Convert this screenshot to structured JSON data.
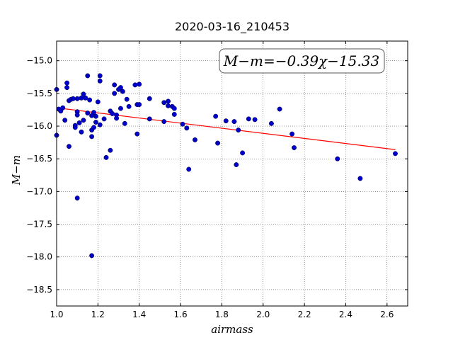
{
  "chart_data": {
    "type": "scatter",
    "title": "2020-03-16_210453",
    "xlabel": "airmass",
    "ylabel": "M−m",
    "xlim": [
      1.0,
      2.7
    ],
    "ylim": [
      -18.75,
      -14.7
    ],
    "y_inverted": true,
    "grid": true,
    "x_ticks": [
      "1.0",
      "1.2",
      "1.4",
      "1.6",
      "1.8",
      "2.0",
      "2.2",
      "2.4",
      "2.6"
    ],
    "y_ticks": [
      "−15.0",
      "−15.5",
      "−16.0",
      "−16.5",
      "−17.0",
      "−17.5",
      "−18.0",
      "−18.5"
    ],
    "annotation": "M−m=−0.39χ−15.33",
    "fit_line": {
      "slope": -0.39,
      "intercept": -15.33,
      "x_range": [
        1.0,
        2.64
      ],
      "color": "#ff0000"
    },
    "marker_color": "#0000cc",
    "series": [
      {
        "x": [
          1.0,
          1.0,
          1.01,
          1.02,
          1.03,
          1.04,
          1.05,
          1.05,
          1.06,
          1.06,
          1.07,
          1.08,
          1.09,
          1.09,
          1.1,
          1.1,
          1.1,
          1.1,
          1.11,
          1.12,
          1.12,
          1.13,
          1.13,
          1.14,
          1.15,
          1.15,
          1.16,
          1.17,
          1.17,
          1.17,
          1.17,
          1.18,
          1.18,
          1.19,
          1.19,
          1.2,
          1.21,
          1.21,
          1.21,
          1.23,
          1.24,
          1.26,
          1.26,
          1.27,
          1.28,
          1.28,
          1.29,
          1.29,
          1.3,
          1.31,
          1.31,
          1.32,
          1.33,
          1.34,
          1.35,
          1.38,
          1.39,
          1.39,
          1.4,
          1.4,
          1.45,
          1.45,
          1.52,
          1.52,
          1.54,
          1.54,
          1.56,
          1.57,
          1.57,
          1.61,
          1.63,
          1.64,
          1.67,
          1.77,
          1.78,
          1.82,
          1.86,
          1.87,
          1.88,
          1.9,
          1.93,
          1.96,
          2.04,
          2.08,
          2.14,
          2.15,
          2.36,
          2.47,
          2.64
        ],
        "y": [
          -15.44,
          -16.14,
          -15.74,
          -15.77,
          -15.72,
          -15.91,
          -15.41,
          -15.34,
          -15.61,
          -16.31,
          -15.59,
          -15.58,
          -15.99,
          -16.02,
          -15.58,
          -15.78,
          -15.83,
          -17.1,
          -15.95,
          -15.57,
          -16.09,
          -15.91,
          -15.51,
          -15.57,
          -15.8,
          -15.23,
          -15.6,
          -15.84,
          -16.06,
          -16.16,
          -17.98,
          -15.79,
          -16.02,
          -15.85,
          -15.94,
          -15.63,
          -15.98,
          -15.31,
          -15.23,
          -15.89,
          -16.48,
          -15.77,
          -16.37,
          -15.81,
          -15.5,
          -15.37,
          -15.83,
          -15.88,
          -15.44,
          -15.41,
          -15.73,
          -15.47,
          -15.96,
          -15.59,
          -15.7,
          -15.37,
          -15.67,
          -16.12,
          -15.36,
          -15.67,
          -15.58,
          -15.89,
          -15.64,
          -15.93,
          -15.69,
          -15.62,
          -15.7,
          -15.73,
          -15.82,
          -15.97,
          -16.03,
          -16.66,
          -16.21,
          -15.85,
          -16.26,
          -15.92,
          -15.93,
          -16.59,
          -16.06,
          -16.41,
          -15.89,
          -15.9,
          -15.96,
          -15.74,
          -16.12,
          -16.33,
          -16.5,
          -16.8,
          -16.42
        ]
      }
    ]
  }
}
